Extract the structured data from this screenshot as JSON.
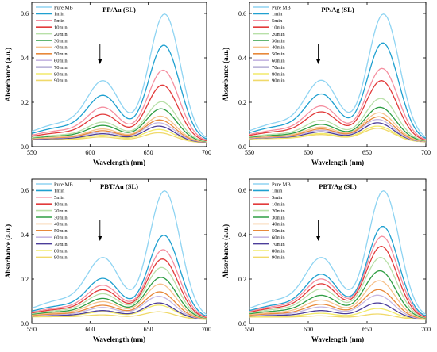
{
  "figure": {
    "series_names": [
      "Pure MB",
      "1min",
      "5min",
      "10min",
      "20min",
      "30min",
      "40min",
      "50min",
      "60min",
      "70min",
      "80min",
      "90min"
    ],
    "series_colors": [
      "#8fd4f2",
      "#1fa0d0",
      "#f58fa0",
      "#e23b3b",
      "#b8e0a8",
      "#2f9e44",
      "#f6c28c",
      "#e8893a",
      "#c6b7e2",
      "#4b3d9a",
      "#f2ea6a",
      "#f0d96a"
    ]
  },
  "chart_data": [
    {
      "type": "line",
      "title": "PP/Au (SL)",
      "xlabel": "Wavelength (nm)",
      "ylabel": "Absorbance (a.u.)",
      "xlim": [
        550,
        700
      ],
      "ylim": [
        0,
        0.65
      ],
      "xticks": [
        "550",
        "600",
        "650",
        "700"
      ],
      "yticks": [
        "0.0",
        "0.2",
        "0.4",
        "0.6"
      ],
      "legend_position": "top-left",
      "arrow": "down",
      "peaks": [
        0.605,
        0.465,
        0.352,
        0.285,
        0.21,
        0.178,
        0.145,
        0.128,
        0.115,
        0.1,
        0.085,
        0.07
      ],
      "baselines": [
        0.035,
        0.034,
        0.033,
        0.032,
        0.031,
        0.031,
        0.03,
        0.03,
        0.03,
        0.029,
        0.029,
        0.028
      ]
    },
    {
      "type": "line",
      "title": "PP/Ag (SL)",
      "xlabel": "Wavelength (nm)",
      "ylabel": "Absorbance (a.u.)",
      "xlim": [
        550,
        700
      ],
      "ylim": [
        0,
        0.65
      ],
      "xticks": [
        "550",
        "600",
        "650",
        "700"
      ],
      "yticks": [
        "0.0",
        "0.2",
        "0.4",
        "0.6"
      ],
      "legend_position": "top-left",
      "arrow": "down",
      "peaks": [
        0.605,
        0.475,
        0.36,
        0.305,
        0.225,
        0.185,
        0.16,
        0.142,
        0.13,
        0.115,
        0.1,
        0.09
      ],
      "baselines": [
        0.038,
        0.037,
        0.036,
        0.035,
        0.034,
        0.034,
        0.033,
        0.033,
        0.032,
        0.032,
        0.031,
        0.031
      ]
    },
    {
      "type": "line",
      "title": "PBT/Au (SL)",
      "xlabel": "Wavelength (nm)",
      "ylabel": "Absorbance (a.u.)",
      "xlim": [
        550,
        700
      ],
      "ylim": [
        0,
        0.65
      ],
      "xticks": [
        "550",
        "600",
        "650",
        "700"
      ],
      "yticks": [
        "0.0",
        "0.2",
        "0.4",
        "0.6"
      ],
      "legend_position": "top-left",
      "arrow": "down",
      "peaks": [
        0.605,
        0.405,
        0.34,
        0.298,
        0.26,
        0.215,
        0.185,
        0.15,
        0.13,
        0.1,
        0.09,
        0.06
      ],
      "baselines": [
        0.035,
        0.034,
        0.033,
        0.032,
        0.031,
        0.031,
        0.03,
        0.03,
        0.029,
        0.029,
        0.028,
        0.028
      ]
    },
    {
      "type": "line",
      "title": "PBT/Ag (SL)",
      "xlabel": "Wavelength (nm)",
      "ylabel": "Absorbance (a.u.)",
      "xlim": [
        550,
        700
      ],
      "ylim": [
        0,
        0.65
      ],
      "xticks": [
        "550",
        "600",
        "650",
        "700"
      ],
      "yticks": [
        "0.0",
        "0.2",
        "0.4",
        "0.6"
      ],
      "legend_position": "top-left",
      "arrow": "down",
      "peaks": [
        0.605,
        0.445,
        0.4,
        0.355,
        0.305,
        0.245,
        0.2,
        0.16,
        0.135,
        0.1,
        0.075,
        0.05
      ],
      "baselines": [
        0.035,
        0.034,
        0.033,
        0.032,
        0.031,
        0.031,
        0.03,
        0.03,
        0.029,
        0.029,
        0.028,
        0.028
      ]
    }
  ]
}
